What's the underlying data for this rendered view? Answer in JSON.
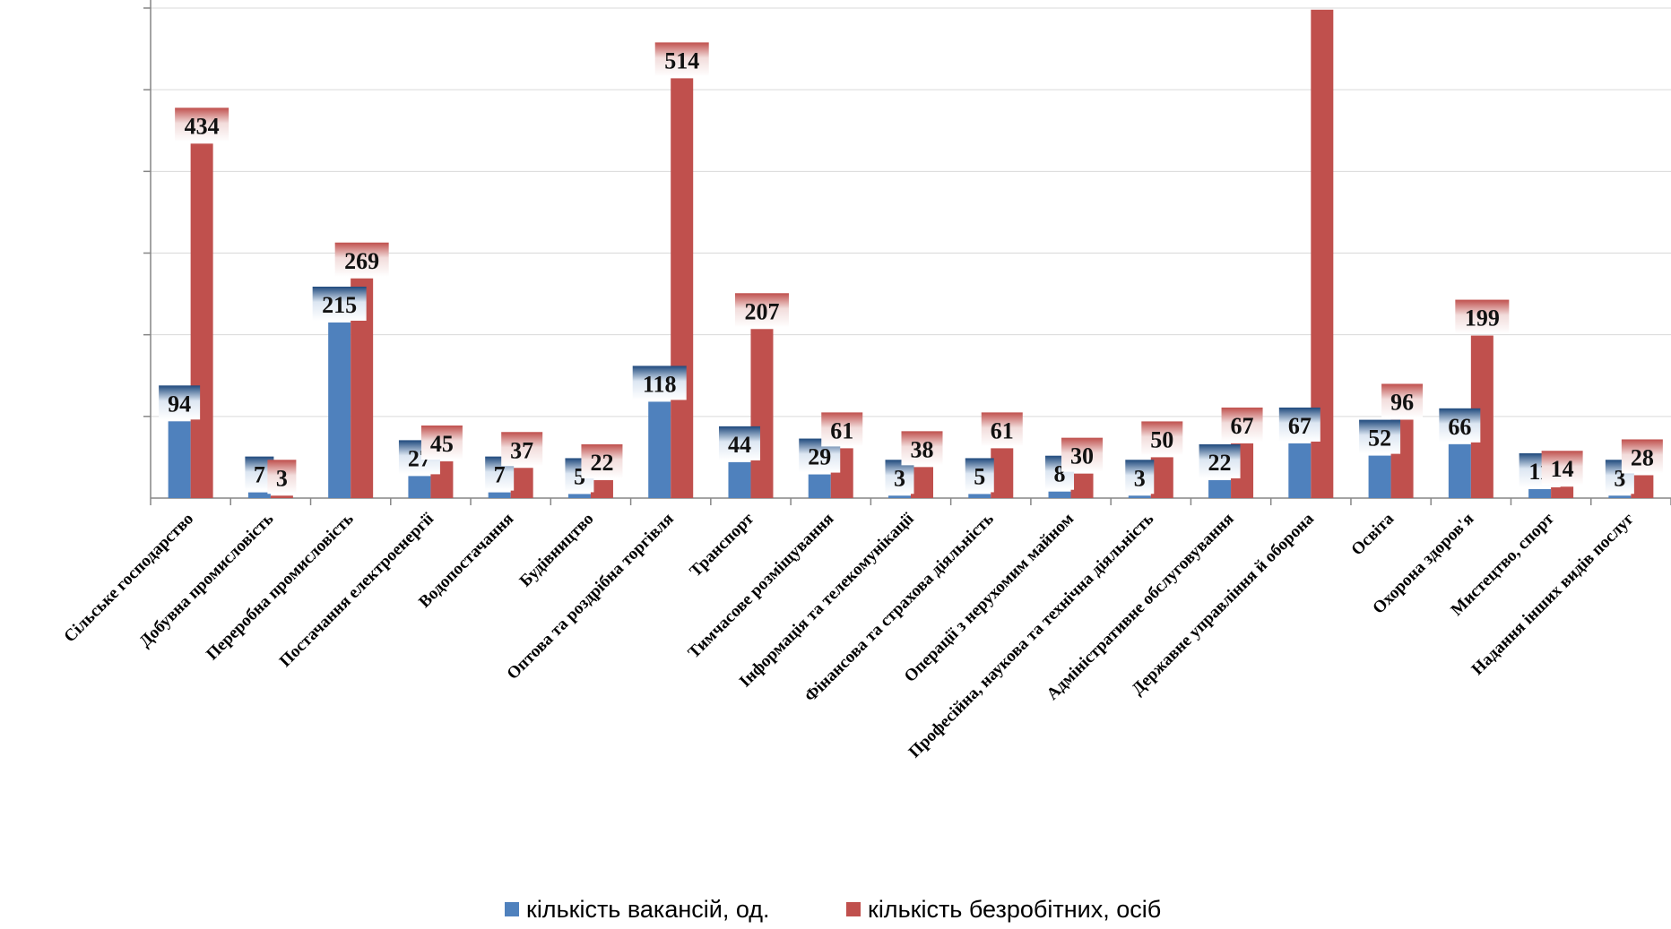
{
  "chart_data": {
    "type": "bar",
    "categories": [
      "Сільське господарство",
      "Добувна промисловість",
      "Переробна промисловість",
      "Постачання електроенергії",
      "Водопостачання",
      "Будівництво",
      "Оптова та роздрібна торгівля",
      "Транспорт",
      "Тимчасове розміщування",
      "Інформація та телекомунікації",
      "Фінансова та страхова діяльність",
      "Операції з нерухомим майном",
      "Професійна, наукова та технічна діяльність",
      "Адміністративне обслуговування",
      "Державне управління й оборона",
      "Освіта",
      "Охорона здоров'я",
      "Мистецтво, спорт",
      "Надання інших видів послуг"
    ],
    "series": [
      {
        "name": "кількість вакансій, од.",
        "color": "#4F81BD",
        "values": [
          94,
          7,
          215,
          27,
          7,
          5,
          118,
          44,
          29,
          3,
          5,
          8,
          3,
          22,
          67,
          52,
          66,
          11,
          3
        ],
        "labels": [
          "94",
          "7",
          "215",
          "27",
          "7",
          "5",
          "118",
          "44",
          "29",
          "3",
          "5",
          "8",
          "3",
          "22",
          "67",
          "52",
          "66",
          "11",
          "3"
        ]
      },
      {
        "name": "кількість безробітних, осіб",
        "color": "#C0504D",
        "values": [
          434,
          3,
          269,
          45,
          37,
          22,
          514,
          207,
          61,
          38,
          61,
          30,
          50,
          67,
          598,
          96,
          199,
          14,
          28
        ],
        "labels": [
          "434",
          "3",
          "269",
          "45",
          "37",
          "22",
          "514",
          "207",
          "61",
          "38",
          "61",
          "30",
          "50",
          "67",
          "",
          "96",
          "199",
          "14",
          "28"
        ]
      }
    ],
    "ylim": [
      0,
      610
    ],
    "grid": true,
    "legend_position": "bottom",
    "title": "",
    "xlabel": "",
    "ylabel": ""
  }
}
